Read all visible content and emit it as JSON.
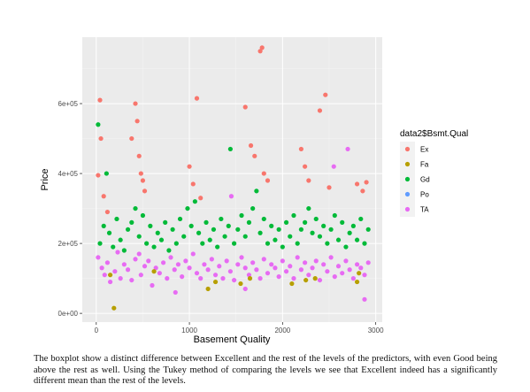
{
  "chart_data": {
    "type": "scatter",
    "title": "",
    "xlabel": "Basement Quality",
    "ylabel": "Price",
    "xlim": [
      -150,
      3070
    ],
    "ylim": [
      -25000,
      790000
    ],
    "x_ticks": [
      0,
      1000,
      2000,
      3000
    ],
    "x_tick_labels": [
      "0",
      "1000",
      "2000",
      "3000"
    ],
    "y_ticks": [
      0,
      200000,
      400000,
      600000
    ],
    "y_tick_labels": [
      "0e+00",
      "2e+05",
      "4e+05",
      "6e+05"
    ],
    "grid": true,
    "legend": {
      "title": "data2$Bsmt.Qual",
      "position": "right",
      "entries": [
        "Ex",
        "Fa",
        "Gd",
        "Po",
        "TA"
      ]
    },
    "series": [
      {
        "name": "TA",
        "color": "#E76BF3",
        "points": [
          [
            20,
            160000
          ],
          [
            60,
            130000
          ],
          [
            90,
            110000
          ],
          [
            120,
            145000
          ],
          [
            150,
            90000
          ],
          [
            200,
            120000
          ],
          [
            230,
            175000
          ],
          [
            260,
            100000
          ],
          [
            300,
            140000
          ],
          [
            340,
            125000
          ],
          [
            380,
            95000
          ],
          [
            420,
            155000
          ],
          [
            460,
            170000
          ],
          [
            480,
            110000
          ],
          [
            520,
            135000
          ],
          [
            560,
            150000
          ],
          [
            600,
            80000
          ],
          [
            640,
            130000
          ],
          [
            680,
            115000
          ],
          [
            720,
            145000
          ],
          [
            760,
            100000
          ],
          [
            800,
            160000
          ],
          [
            840,
            125000
          ],
          [
            880,
            140000
          ],
          [
            920,
            105000
          ],
          [
            960,
            150000
          ],
          [
            1000,
            130000
          ],
          [
            1040,
            170000
          ],
          [
            1080,
            115000
          ],
          [
            1120,
            100000
          ],
          [
            1160,
            140000
          ],
          [
            1200,
            125000
          ],
          [
            1240,
            155000
          ],
          [
            1280,
            110000
          ],
          [
            1320,
            135000
          ],
          [
            1360,
            100000
          ],
          [
            1400,
            150000
          ],
          [
            1440,
            120000
          ],
          [
            1480,
            95000
          ],
          [
            1520,
            140000
          ],
          [
            1560,
            160000
          ],
          [
            1600,
            130000
          ],
          [
            1640,
            110000
          ],
          [
            1680,
            145000
          ],
          [
            1720,
            125000
          ],
          [
            1760,
            100000
          ],
          [
            1800,
            155000
          ],
          [
            1840,
            115000
          ],
          [
            1880,
            140000
          ],
          [
            1920,
            130000
          ],
          [
            1960,
            105000
          ],
          [
            2000,
            150000
          ],
          [
            2040,
            120000
          ],
          [
            2080,
            135000
          ],
          [
            2120,
            100000
          ],
          [
            2160,
            160000
          ],
          [
            2200,
            125000
          ],
          [
            2240,
            145000
          ],
          [
            2280,
            110000
          ],
          [
            2320,
            130000
          ],
          [
            2360,
            150000
          ],
          [
            2400,
            95000
          ],
          [
            2440,
            140000
          ],
          [
            2480,
            120000
          ],
          [
            2520,
            160000
          ],
          [
            2560,
            105000
          ],
          [
            2600,
            135000
          ],
          [
            2640,
            115000
          ],
          [
            2680,
            150000
          ],
          [
            2720,
            125000
          ],
          [
            2760,
            100000
          ],
          [
            2800,
            140000
          ],
          [
            2840,
            130000
          ],
          [
            2880,
            110000
          ],
          [
            2920,
            145000
          ],
          [
            2700,
            470000
          ],
          [
            2550,
            420000
          ],
          [
            1450,
            335000
          ],
          [
            2880,
            40000
          ],
          [
            850,
            60000
          ],
          [
            1600,
            70000
          ]
        ]
      },
      {
        "name": "Gd",
        "color": "#00BA38",
        "points": [
          [
            20,
            540000
          ],
          [
            40,
            200000
          ],
          [
            80,
            250000
          ],
          [
            110,
            400000
          ],
          [
            140,
            230000
          ],
          [
            180,
            190000
          ],
          [
            220,
            270000
          ],
          [
            260,
            210000
          ],
          [
            300,
            180000
          ],
          [
            340,
            240000
          ],
          [
            380,
            260000
          ],
          [
            420,
            300000
          ],
          [
            460,
            220000
          ],
          [
            500,
            280000
          ],
          [
            540,
            200000
          ],
          [
            580,
            250000
          ],
          [
            620,
            190000
          ],
          [
            660,
            230000
          ],
          [
            700,
            210000
          ],
          [
            740,
            260000
          ],
          [
            780,
            180000
          ],
          [
            820,
            240000
          ],
          [
            860,
            200000
          ],
          [
            900,
            270000
          ],
          [
            940,
            220000
          ],
          [
            980,
            300000
          ],
          [
            1020,
            250000
          ],
          [
            1060,
            320000
          ],
          [
            1100,
            230000
          ],
          [
            1140,
            200000
          ],
          [
            1180,
            260000
          ],
          [
            1220,
            210000
          ],
          [
            1260,
            240000
          ],
          [
            1300,
            190000
          ],
          [
            1340,
            270000
          ],
          [
            1380,
            220000
          ],
          [
            1420,
            250000
          ],
          [
            1440,
            470000
          ],
          [
            1480,
            200000
          ],
          [
            1520,
            240000
          ],
          [
            1560,
            280000
          ],
          [
            1600,
            220000
          ],
          [
            1640,
            260000
          ],
          [
            1680,
            300000
          ],
          [
            1720,
            350000
          ],
          [
            1760,
            230000
          ],
          [
            1800,
            270000
          ],
          [
            1840,
            200000
          ],
          [
            1880,
            250000
          ],
          [
            1920,
            210000
          ],
          [
            1960,
            240000
          ],
          [
            2000,
            190000
          ],
          [
            2040,
            260000
          ],
          [
            2080,
            220000
          ],
          [
            2120,
            280000
          ],
          [
            2160,
            200000
          ],
          [
            2200,
            240000
          ],
          [
            2240,
            260000
          ],
          [
            2280,
            300000
          ],
          [
            2320,
            230000
          ],
          [
            2360,
            270000
          ],
          [
            2400,
            220000
          ],
          [
            2440,
            250000
          ],
          [
            2480,
            200000
          ],
          [
            2520,
            240000
          ],
          [
            2560,
            280000
          ],
          [
            2600,
            210000
          ],
          [
            2640,
            260000
          ],
          [
            2680,
            190000
          ],
          [
            2720,
            230000
          ],
          [
            2760,
            250000
          ],
          [
            2800,
            210000
          ],
          [
            2840,
            270000
          ],
          [
            2880,
            200000
          ],
          [
            2920,
            240000
          ]
        ]
      },
      {
        "name": "Ex",
        "color": "#F8766D",
        "points": [
          [
            20,
            395000
          ],
          [
            40,
            610000
          ],
          [
            50,
            500000
          ],
          [
            80,
            335000
          ],
          [
            120,
            290000
          ],
          [
            380,
            500000
          ],
          [
            420,
            600000
          ],
          [
            440,
            550000
          ],
          [
            460,
            450000
          ],
          [
            480,
            400000
          ],
          [
            500,
            380000
          ],
          [
            520,
            350000
          ],
          [
            1000,
            420000
          ],
          [
            1040,
            370000
          ],
          [
            1080,
            615000
          ],
          [
            1120,
            330000
          ],
          [
            1600,
            590000
          ],
          [
            1660,
            480000
          ],
          [
            1700,
            450000
          ],
          [
            1760,
            750000
          ],
          [
            1780,
            760000
          ],
          [
            1800,
            400000
          ],
          [
            1840,
            380000
          ],
          [
            2200,
            470000
          ],
          [
            2240,
            420000
          ],
          [
            2280,
            380000
          ],
          [
            2400,
            580000
          ],
          [
            2460,
            625000
          ],
          [
            2500,
            360000
          ],
          [
            2800,
            370000
          ],
          [
            2860,
            350000
          ],
          [
            2900,
            375000
          ]
        ]
      },
      {
        "name": "Fa",
        "color": "#B79F00",
        "points": [
          [
            190,
            15000
          ],
          [
            150,
            110000
          ],
          [
            620,
            120000
          ],
          [
            1200,
            70000
          ],
          [
            1280,
            90000
          ],
          [
            1550,
            85000
          ],
          [
            1650,
            100000
          ],
          [
            2100,
            85000
          ],
          [
            2250,
            95000
          ],
          [
            2350,
            100000
          ],
          [
            2800,
            90000
          ],
          [
            2820,
            115000
          ]
        ]
      },
      {
        "name": "Po",
        "color": "#619CFF",
        "points": []
      }
    ]
  },
  "caption": "The boxplot show a distinct difference between Excellent and the rest of the levels of the predictors, with even Good being above the rest as well. Using the Tukey method of comparing the levels we see that Excellent indeed has a significantly different mean than the rest of the levels."
}
